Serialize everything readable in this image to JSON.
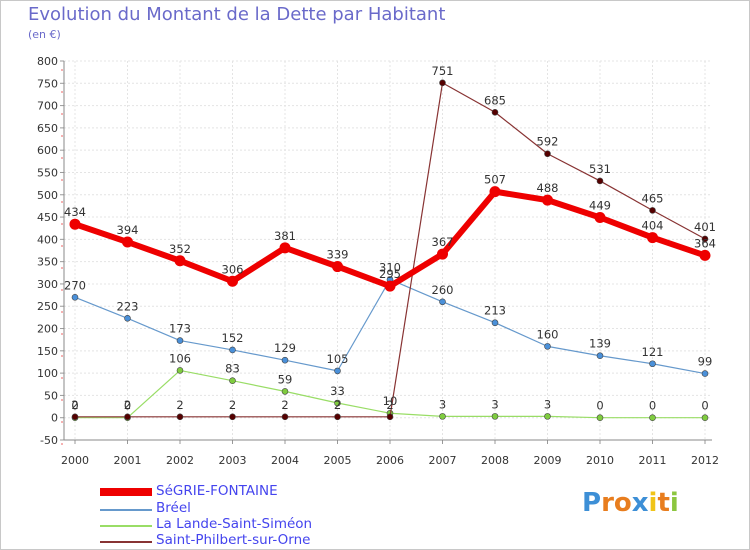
{
  "chart_data": {
    "type": "line",
    "title": "Evolution du Montant de la Dette par Habitant",
    "subtitle": "(en €)",
    "xlabel": "",
    "ylabel": "",
    "categories": [
      "2000",
      "2001",
      "2002",
      "2003",
      "2004",
      "2005",
      "2006",
      "2007",
      "2008",
      "2009",
      "2010",
      "2011",
      "2012"
    ],
    "ylim": [
      -50,
      800
    ],
    "yticks": [
      -50,
      0,
      50,
      100,
      150,
      200,
      250,
      300,
      350,
      400,
      450,
      500,
      550,
      600,
      650,
      700,
      750,
      800
    ],
    "grid": true,
    "series": [
      {
        "name": "SéGRIE-FONTAINE",
        "color": "#ee0000",
        "values": [
          434,
          394,
          352,
          306,
          381,
          339,
          295,
          367,
          507,
          488,
          449,
          404,
          364
        ],
        "labels": [
          "434",
          "394",
          "352",
          "306",
          "381",
          "339",
          "295",
          "367",
          "507",
          "488",
          "449",
          "404",
          "364"
        ]
      },
      {
        "name": "Bréel",
        "color": "#6699cc",
        "values": [
          270,
          223,
          173,
          152,
          129,
          105,
          310,
          260,
          213,
          160,
          139,
          121,
          99
        ],
        "labels": [
          "270",
          "223",
          "173",
          "152",
          "129",
          "105",
          "310",
          "260",
          "213",
          "160",
          "139",
          "121",
          "99"
        ]
      },
      {
        "name": "La Lande-Saint-Siméon",
        "color": "#99dd66",
        "values": [
          0,
          0,
          106,
          83,
          59,
          33,
          10,
          3,
          3,
          3,
          0,
          0,
          0
        ],
        "labels": [
          "0",
          "0",
          "106",
          "83",
          "59",
          "33",
          "10",
          "3",
          "3",
          "3",
          "0",
          "0",
          "0"
        ]
      },
      {
        "name": "Saint-Philbert-sur-Orne",
        "color": "#883333",
        "values": [
          2,
          2,
          2,
          2,
          2,
          2,
          2,
          751,
          685,
          592,
          531,
          465,
          401
        ],
        "labels": [
          "2",
          "2",
          "2",
          "2",
          "2",
          "2",
          "2",
          "751",
          "685",
          "592",
          "531",
          "465",
          "401"
        ]
      }
    ]
  },
  "logo": {
    "text": "Proxiti",
    "letters": [
      "P",
      "r",
      "o",
      "x",
      "i",
      "t",
      "i"
    ],
    "colors": [
      "#3d8fd6",
      "#e87d1e",
      "#e87d1e",
      "#3d8fd6",
      "#f0c419",
      "#e87d1e",
      "#8cc63f"
    ]
  }
}
